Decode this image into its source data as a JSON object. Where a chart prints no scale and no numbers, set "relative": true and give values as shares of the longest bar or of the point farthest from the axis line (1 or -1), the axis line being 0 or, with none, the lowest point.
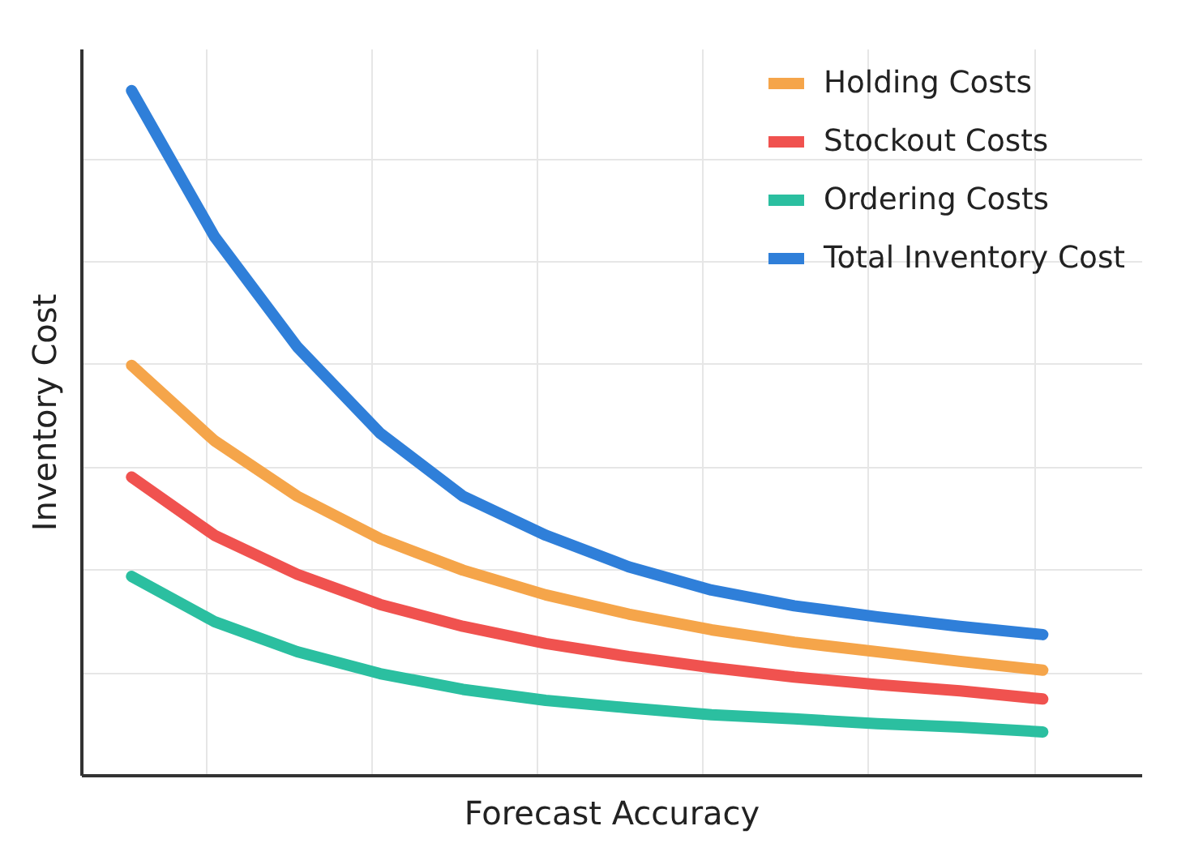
{
  "chart_data": {
    "type": "line",
    "relative": true,
    "xlabel": "Forecast Accuracy",
    "ylabel": "Inventory Cost",
    "categories": [
      null,
      null,
      null,
      null,
      null,
      null,
      null,
      null,
      null,
      null,
      null,
      null
    ],
    "series": [
      {
        "name": "Holding Costs",
        "color": "#f5a54a",
        "values": [
          0.599,
          0.489,
          0.408,
          0.346,
          0.3,
          0.264,
          0.236,
          0.213,
          0.195,
          0.181,
          0.167,
          0.154
        ]
      },
      {
        "name": "Stockout Costs",
        "color": "#f0524f",
        "values": [
          0.436,
          0.351,
          0.294,
          0.25,
          0.218,
          0.193,
          0.174,
          0.158,
          0.144,
          0.133,
          0.124,
          0.112
        ]
      },
      {
        "name": "Ordering Costs",
        "color": "#2bbfa0",
        "values": [
          0.291,
          0.225,
          0.181,
          0.149,
          0.126,
          0.11,
          0.099,
          0.089,
          0.083,
          0.076,
          0.071,
          0.064
        ]
      },
      {
        "name": "Total Inventory Cost",
        "color": "#2f7fd9",
        "values": [
          1.0,
          0.787,
          0.626,
          0.5,
          0.408,
          0.351,
          0.305,
          0.271,
          0.248,
          0.232,
          0.218,
          0.206
        ]
      }
    ],
    "grid": true,
    "legend": "top right",
    "line_style": "solid",
    "marker": "none"
  }
}
